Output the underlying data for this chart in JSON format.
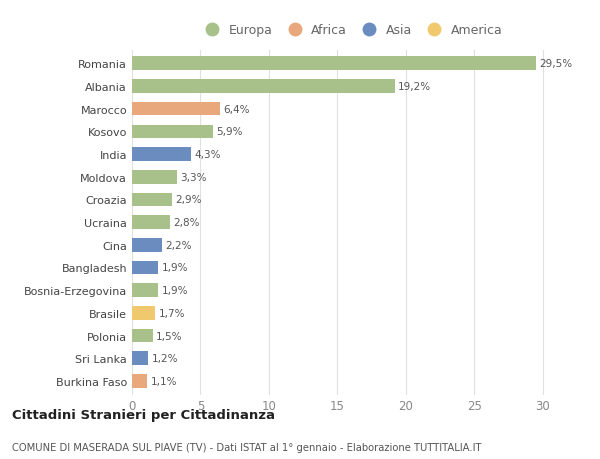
{
  "countries": [
    "Romania",
    "Albania",
    "Marocco",
    "Kosovo",
    "India",
    "Moldova",
    "Croazia",
    "Ucraina",
    "Cina",
    "Bangladesh",
    "Bosnia-Erzegovina",
    "Brasile",
    "Polonia",
    "Sri Lanka",
    "Burkina Faso"
  ],
  "values": [
    29.5,
    19.2,
    6.4,
    5.9,
    4.3,
    3.3,
    2.9,
    2.8,
    2.2,
    1.9,
    1.9,
    1.7,
    1.5,
    1.2,
    1.1
  ],
  "labels": [
    "29,5%",
    "19,2%",
    "6,4%",
    "5,9%",
    "4,3%",
    "3,3%",
    "2,9%",
    "2,8%",
    "2,2%",
    "1,9%",
    "1,9%",
    "1,7%",
    "1,5%",
    "1,2%",
    "1,1%"
  ],
  "continents": [
    "Europa",
    "Europa",
    "Africa",
    "Europa",
    "Asia",
    "Europa",
    "Europa",
    "Europa",
    "Asia",
    "Asia",
    "Europa",
    "America",
    "Europa",
    "Asia",
    "Africa"
  ],
  "colors": {
    "Europa": "#a8c08a",
    "Africa": "#e8a87c",
    "Asia": "#6b8cbf",
    "America": "#f0c96e"
  },
  "legend_order": [
    "Europa",
    "Africa",
    "Asia",
    "America"
  ],
  "title": "Cittadini Stranieri per Cittadinanza",
  "subtitle": "COMUNE DI MASERADA SUL PIAVE (TV) - Dati ISTAT al 1° gennaio - Elaborazione TUTTITALIA.IT",
  "xlim": [
    0,
    32
  ],
  "xticks": [
    0,
    5,
    10,
    15,
    20,
    25,
    30
  ],
  "bg_color": "#ffffff",
  "grid_color": "#e0e0e0"
}
